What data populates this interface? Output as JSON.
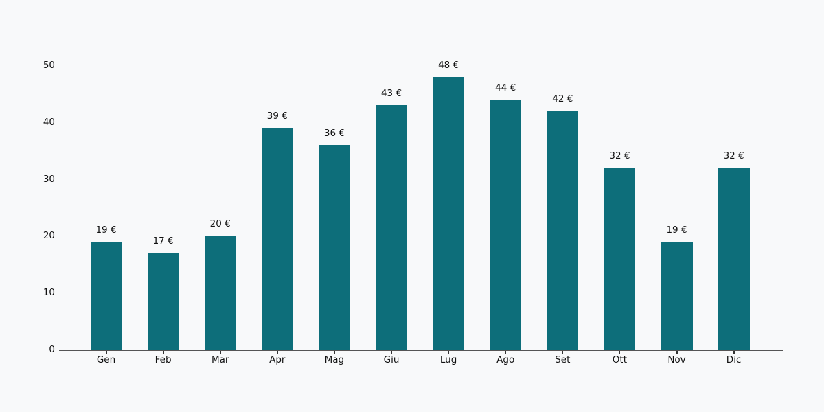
{
  "chart_data": {
    "type": "bar",
    "title": "",
    "xlabel": "",
    "ylabel": "",
    "categories": [
      "Gen",
      "Feb",
      "Mar",
      "Apr",
      "Mag",
      "Giu",
      "Lug",
      "Ago",
      "Set",
      "Ott",
      "Nov",
      "Dic"
    ],
    "values": [
      19,
      17,
      20,
      39,
      36,
      43,
      48,
      44,
      42,
      32,
      19,
      32
    ],
    "value_labels": [
      "19 €",
      "17 €",
      "20 €",
      "39 €",
      "36 €",
      "43 €",
      "48 €",
      "44 €",
      "42 €",
      "32 €",
      "19 €",
      "32 €"
    ],
    "ylim": [
      0,
      50
    ],
    "yticks": [
      "0",
      "10",
      "20",
      "30",
      "40",
      "50"
    ],
    "ytick_values": [
      0,
      10,
      20,
      30,
      40,
      50
    ],
    "grid": false,
    "legend": false,
    "colors": {
      "bar": "#0d6e7a",
      "background": "#f8f9fa",
      "axis_line": "#555555",
      "tick_mark": "#333333",
      "text": "#111111"
    }
  }
}
